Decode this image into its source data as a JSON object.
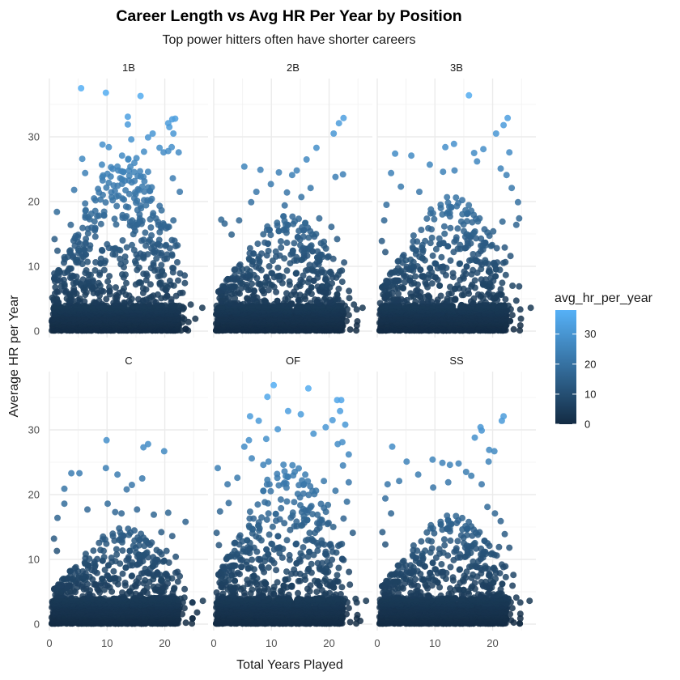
{
  "chart_data": {
    "type": "scatter",
    "title": "Career Length vs Avg HR Per Year by Position",
    "subtitle": "Top power hitters often have shorter careers",
    "xlabel": "Total Years Played",
    "ylabel": "Average HR per Year",
    "xlim": [
      0,
      27.5
    ],
    "ylim": [
      -1,
      39
    ],
    "x_ticks": [
      0,
      10,
      20
    ],
    "y_ticks": [
      0,
      10,
      20,
      30
    ],
    "grid": true,
    "facet_layout": "2x3",
    "colorbar": {
      "title": "avg_hr_per_year",
      "ticks": [
        0,
        10,
        20,
        30
      ],
      "range": [
        0,
        38
      ],
      "low_color": "#132B43",
      "high_color": "#56B1F7",
      "placement": "right"
    },
    "facets": [
      {
        "name": "1B",
        "max_avg": 24,
        "points": [
          [
            5.5,
            37.5
          ],
          [
            9.8,
            36.8
          ],
          [
            15.8,
            36.3
          ],
          [
            13.6,
            33.1
          ],
          [
            13.6,
            31.9
          ],
          [
            17.9,
            30.5
          ],
          [
            17.1,
            29.9
          ],
          [
            14.2,
            29.6
          ],
          [
            9.2,
            28.8
          ],
          [
            10.3,
            28.4
          ],
          [
            20.6,
            32.1
          ],
          [
            21.3,
            32.7
          ],
          [
            20.8,
            31.5
          ],
          [
            21.8,
            32.8
          ],
          [
            21.5,
            30.5
          ],
          [
            19.1,
            28.3
          ],
          [
            19.8,
            27.6
          ],
          [
            20.6,
            27.8
          ],
          [
            21.2,
            28.4
          ],
          [
            22.4,
            27.6
          ],
          [
            21.4,
            23.6
          ],
          [
            22.6,
            21.5
          ],
          [
            21.5,
            17.1
          ],
          [
            11.8,
            25.4
          ],
          [
            12.6,
            27.1
          ],
          [
            13.7,
            26.6
          ],
          [
            15.1,
            26.7
          ],
          [
            16.4,
            27.7
          ],
          [
            17.1,
            24.6
          ],
          [
            16.1,
            22.3
          ],
          [
            5.7,
            26.6
          ],
          [
            6.2,
            24.4
          ],
          [
            9.1,
            25.7
          ],
          [
            10.3,
            22.9
          ],
          [
            8.6,
            21.4
          ],
          [
            6.2,
            19.7
          ],
          [
            4.3,
            21.8
          ],
          [
            1.3,
            18.4
          ],
          [
            3.7,
            16.4
          ],
          [
            0.9,
            14.2
          ],
          [
            1.4,
            12.4
          ],
          [
            2.6,
            11.4
          ],
          [
            18.9,
            16.4
          ],
          [
            17.4,
            14.1
          ],
          [
            18.2,
            12.1
          ],
          [
            19.4,
            10.2
          ],
          [
            21.5,
            9.7
          ],
          [
            23.1,
            5.9
          ],
          [
            24.5,
            4.1
          ],
          [
            26.5,
            3.6
          ],
          [
            24.1,
            1.4
          ],
          [
            25.3,
            1.9
          ]
        ]
      },
      {
        "name": "2B",
        "max_avg": 15,
        "points": [
          [
            20.8,
            30.5
          ],
          [
            22.5,
            32.9
          ],
          [
            21.7,
            32.1
          ],
          [
            17.8,
            28.3
          ],
          [
            16.1,
            26.5
          ],
          [
            22.4,
            24.2
          ],
          [
            21.1,
            23.8
          ],
          [
            5.3,
            25.4
          ],
          [
            8.1,
            24.9
          ],
          [
            11.3,
            24.5
          ],
          [
            13.6,
            24.1
          ],
          [
            14.4,
            24.8
          ],
          [
            16.8,
            22.1
          ],
          [
            9.9,
            22.7
          ],
          [
            7.4,
            21.5
          ],
          [
            12.7,
            21.4
          ],
          [
            15.2,
            20.7
          ],
          [
            6.5,
            19.9
          ],
          [
            12.3,
            19.4
          ],
          [
            1.3,
            17.2
          ],
          [
            1.9,
            16.6
          ],
          [
            4.4,
            17.1
          ],
          [
            3.1,
            14.9
          ],
          [
            18.3,
            17.4
          ],
          [
            20.4,
            16.1
          ],
          [
            21.4,
            14.2
          ],
          [
            19.1,
            13.8
          ],
          [
            22.6,
            10.6
          ],
          [
            21.6,
            8.7
          ],
          [
            23.5,
            5.1
          ],
          [
            25.8,
            3.6
          ],
          [
            24.3,
            4.1
          ],
          [
            24.9,
            1.5
          ],
          [
            22.4,
            2.8
          ],
          [
            18.2,
            10.3
          ]
        ]
      },
      {
        "name": "3B",
        "max_avg": 18,
        "points": [
          [
            15.9,
            36.4
          ],
          [
            20.6,
            30.5
          ],
          [
            22.6,
            32.9
          ],
          [
            21.9,
            31.8
          ],
          [
            18.4,
            28.1
          ],
          [
            16.8,
            27.5
          ],
          [
            17.3,
            26.2
          ],
          [
            11.8,
            28.4
          ],
          [
            13.3,
            28.9
          ],
          [
            3.1,
            27.4
          ],
          [
            5.9,
            27.1
          ],
          [
            9.1,
            25.7
          ],
          [
            11.4,
            24.6
          ],
          [
            13.4,
            24.8
          ],
          [
            2.4,
            24.4
          ],
          [
            4.1,
            22.3
          ],
          [
            22.9,
            27.6
          ],
          [
            21.4,
            25.1
          ],
          [
            22.4,
            24.1
          ],
          [
            23.3,
            22.1
          ],
          [
            24.4,
            19.9
          ],
          [
            24.1,
            16.4
          ],
          [
            24.6,
            17.4
          ],
          [
            22.1,
            12.9
          ],
          [
            23.1,
            11.6
          ],
          [
            20.8,
            10.6
          ],
          [
            24.6,
            6.9
          ],
          [
            24.1,
            4.7
          ],
          [
            26.6,
            3.6
          ],
          [
            24.9,
            1.9
          ],
          [
            20.1,
            15.4
          ],
          [
            21.7,
            16.9
          ],
          [
            1.6,
            19.5
          ],
          [
            1.2,
            17.1
          ],
          [
            0.8,
            13.9
          ],
          [
            1.4,
            12.2
          ],
          [
            7.3,
            21.5
          ]
        ]
      },
      {
        "name": "C",
        "max_avg": 12,
        "points": [
          [
            9.9,
            28.4
          ],
          [
            17.1,
            27.8
          ],
          [
            19.9,
            26.7
          ],
          [
            16.3,
            27.3
          ],
          [
            9.8,
            24.1
          ],
          [
            3.8,
            23.3
          ],
          [
            5.2,
            23.3
          ],
          [
            11.8,
            23.1
          ],
          [
            16.1,
            22.5
          ],
          [
            14.3,
            21.5
          ],
          [
            13.4,
            20.8
          ],
          [
            2.6,
            20.9
          ],
          [
            10.1,
            18.6
          ],
          [
            2.6,
            18.6
          ],
          [
            6.6,
            17.7
          ],
          [
            15.2,
            17.7
          ],
          [
            11.4,
            17.3
          ],
          [
            18.1,
            16.9
          ],
          [
            20.6,
            17.2
          ],
          [
            12.5,
            17.1
          ],
          [
            1.4,
            16.4
          ],
          [
            0.8,
            13.2
          ],
          [
            1.3,
            11.3
          ],
          [
            19.4,
            14.2
          ],
          [
            23.6,
            15.8
          ],
          [
            21.3,
            13.6
          ],
          [
            20.3,
            11.3
          ],
          [
            21.9,
            10.4
          ],
          [
            22.6,
            7.4
          ],
          [
            21.6,
            5.4
          ],
          [
            23.4,
            4.1
          ],
          [
            26.6,
            3.6
          ],
          [
            25.6,
            1.8
          ],
          [
            22.6,
            2.8
          ],
          [
            19.8,
            5.7
          ]
        ]
      },
      {
        "name": "OF",
        "max_avg": 22,
        "points": [
          [
            10.4,
            36.9
          ],
          [
            16.4,
            36.4
          ],
          [
            9.3,
            35.1
          ],
          [
            12.9,
            32.9
          ],
          [
            7.8,
            31.4
          ],
          [
            6.3,
            32.1
          ],
          [
            15.1,
            32.4
          ],
          [
            11.1,
            30.1
          ],
          [
            9.1,
            28.6
          ],
          [
            6.1,
            28.4
          ],
          [
            19.4,
            30.4
          ],
          [
            21.4,
            34.6
          ],
          [
            22.1,
            34.6
          ],
          [
            21.9,
            32.9
          ],
          [
            20.6,
            31.5
          ],
          [
            17.3,
            29.4
          ],
          [
            22.8,
            30.8
          ],
          [
            21.5,
            27.8
          ],
          [
            22.3,
            28.1
          ],
          [
            23.4,
            26.2
          ],
          [
            5.3,
            27.4
          ],
          [
            0.7,
            24.1
          ],
          [
            2.4,
            21.6
          ],
          [
            6.6,
            25.6
          ],
          [
            8.6,
            24.6
          ],
          [
            9.5,
            25.1
          ],
          [
            4.1,
            22.6
          ],
          [
            1.1,
            17.4
          ],
          [
            2.6,
            18.7
          ],
          [
            0.5,
            14.1
          ],
          [
            0.9,
            12.2
          ],
          [
            22.4,
            24.5
          ],
          [
            23.4,
            21.9
          ],
          [
            21.1,
            20.6
          ],
          [
            23.1,
            18.9
          ],
          [
            22.5,
            16.3
          ],
          [
            24.1,
            14.1
          ],
          [
            21.6,
            12.1
          ],
          [
            22.5,
            9.9
          ],
          [
            23.6,
            6.1
          ],
          [
            24.6,
            3.9
          ],
          [
            26.4,
            3.6
          ],
          [
            24.9,
            1.4
          ],
          [
            25.4,
            0.5
          ],
          [
            19.8,
            18.4
          ],
          [
            19.1,
            22.1
          ]
        ]
      },
      {
        "name": "SS",
        "max_avg": 14,
        "points": [
          [
            21.9,
            32.1
          ],
          [
            21.6,
            31.4
          ],
          [
            17.9,
            30.4
          ],
          [
            18.1,
            29.9
          ],
          [
            16.9,
            28.8
          ],
          [
            19.4,
            26.9
          ],
          [
            20.3,
            26.7
          ],
          [
            2.6,
            27.4
          ],
          [
            19.3,
            25.1
          ],
          [
            5.1,
            25.1
          ],
          [
            11.3,
            24.9
          ],
          [
            9.6,
            25.4
          ],
          [
            14.1,
            24.8
          ],
          [
            12.6,
            24.6
          ],
          [
            15.4,
            23.5
          ],
          [
            16.3,
            22.9
          ],
          [
            7.1,
            23.1
          ],
          [
            1.8,
            21.6
          ],
          [
            3.8,
            22.1
          ],
          [
            9.7,
            21.1
          ],
          [
            12.3,
            21.9
          ],
          [
            18.1,
            21.6
          ],
          [
            1.4,
            19.4
          ],
          [
            2.4,
            17.1
          ],
          [
            0.9,
            14.2
          ],
          [
            1.4,
            12.3
          ],
          [
            19.1,
            18.1
          ],
          [
            20.4,
            17.1
          ],
          [
            21.4,
            15.9
          ],
          [
            22.1,
            13.9
          ],
          [
            21.1,
            11.9
          ],
          [
            22.9,
            11.8
          ],
          [
            20.3,
            10.7
          ],
          [
            23.6,
            7.6
          ],
          [
            21.6,
            9.2
          ],
          [
            24.1,
            4.1
          ],
          [
            26.4,
            3.6
          ],
          [
            24.8,
            1.6
          ],
          [
            22.6,
            3.4
          ],
          [
            23.2,
            0.6
          ]
        ]
      }
    ]
  }
}
